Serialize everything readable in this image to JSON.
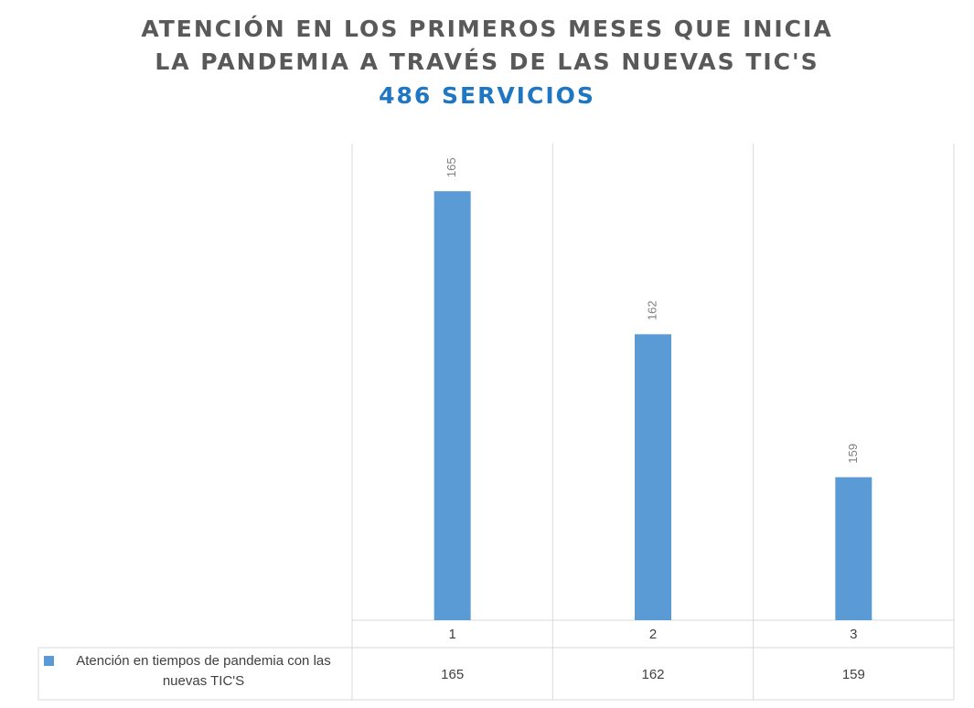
{
  "chart_data": {
    "type": "bar",
    "title": "ATENCIÓN EN LOS PRIMEROS MESES QUE INICIA LA PANDEMIA A TRAVÉS DE LAS NUEVAS TIC'S",
    "subtitle": "486 SERVICIOS",
    "categories": [
      "1",
      "2",
      "3"
    ],
    "series": [
      {
        "name": "Atención en tiempos de pandemia con las nuevas TIC'S",
        "color": "#5b9bd5",
        "values": [
          165,
          162,
          159
        ]
      }
    ],
    "ylim": [
      156,
      166
    ],
    "grid": true
  }
}
